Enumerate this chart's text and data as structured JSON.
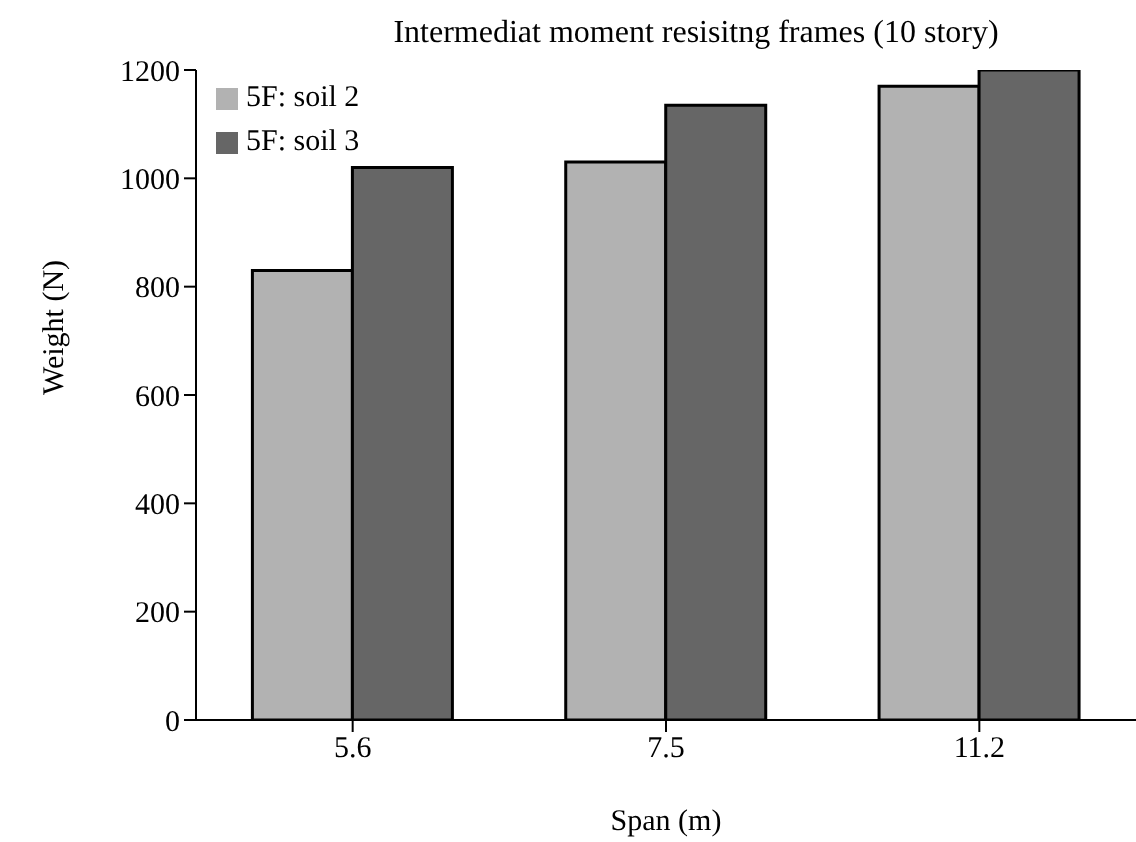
{
  "chart_data": {
    "type": "bar",
    "title": "Intermediat moment resisitng frames (10 story)",
    "xlabel": "Span (m)",
    "ylabel": "Weight (N)",
    "categories": [
      "5.6",
      "7.5",
      "11.2"
    ],
    "series": [
      {
        "name": "5F: soil 2",
        "color": "#b2b2b2",
        "values": [
          830,
          1030,
          1170
        ]
      },
      {
        "name": "5F: soil 3",
        "color": "#666666",
        "values": [
          1020,
          1135,
          1200
        ]
      }
    ],
    "ylim": [
      0,
      1200
    ],
    "yticks": [
      0,
      200,
      400,
      600,
      800,
      1000,
      1200
    ],
    "grid": false,
    "legend": "top left"
  }
}
